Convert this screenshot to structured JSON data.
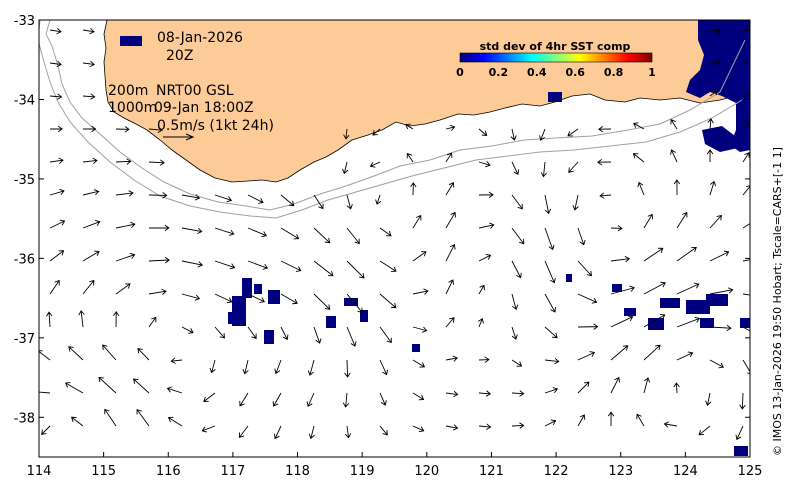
{
  "map": {
    "date": "08-Jan-2026",
    "hour": "20Z",
    "depth_200": "200m",
    "depth_1000": "1000m",
    "product": "NRT00 GSL",
    "product_time": "09-Jan 18:00Z",
    "scale_label": "0.5m/s (1kt 24h)",
    "credit": "© IMOS 13-Jan-2026 19:50 Hobart; Tscale=CARS+[-1 1]",
    "colorbar": {
      "title": "std dev of 4hr SST comp",
      "ticks": [
        "0",
        "0.2",
        "0.4",
        "0.6",
        "0.8",
        "1"
      ],
      "colors": [
        "#00007f",
        "#0000ff",
        "#007fff",
        "#00ffff",
        "#7fff7f",
        "#ffff00",
        "#ff7f00",
        "#ff0000",
        "#7f0000"
      ]
    },
    "x_axis": {
      "ticks": [
        "114",
        "115",
        "116",
        "117",
        "118",
        "119",
        "120",
        "121",
        "122",
        "123",
        "124",
        "125"
      ],
      "range": [
        114,
        125
      ]
    },
    "y_axis": {
      "ticks": [
        "-33",
        "-34",
        "-35",
        "-36",
        "-37",
        "-38"
      ],
      "range": [
        -38.5,
        -33
      ]
    },
    "colors": {
      "land": "#fdcb98",
      "isobath": "#a0a0a0",
      "arrow": "#000000",
      "sst_high": "#00007f"
    }
  }
}
